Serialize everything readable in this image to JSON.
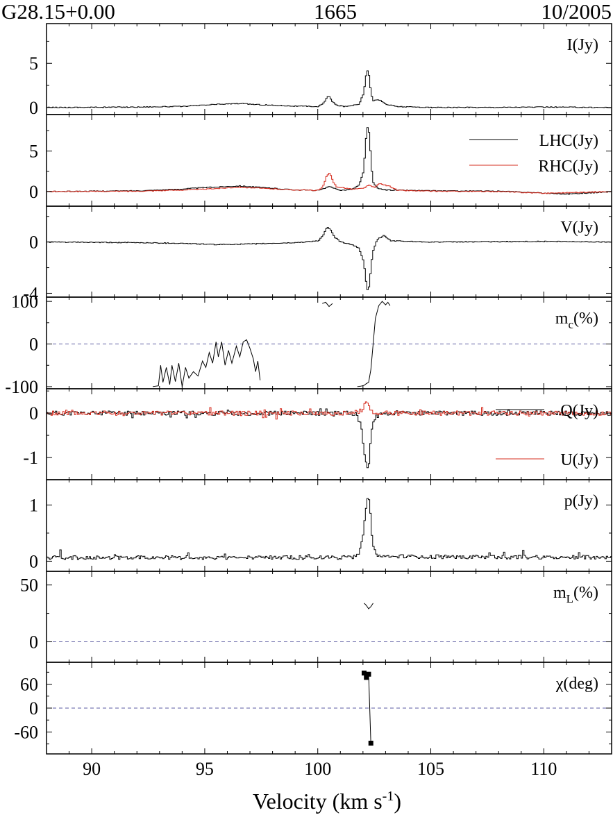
{
  "header": {
    "source": "G28.15+0.00",
    "frequency": "1665",
    "date": "10/2005"
  },
  "chart_data": {
    "type": "line",
    "xlabel": "Velocity (km s",
    "xlabel_sup": "-1",
    "xlabel_end": ")",
    "xlim": [
      88,
      113
    ],
    "xticks": [
      90,
      95,
      100,
      105,
      110
    ],
    "panels": [
      {
        "key": "I",
        "label": "I(Jy)",
        "ylim": [
          -0.8,
          9.5
        ],
        "yticks": [
          0,
          5
        ],
        "zero_line": false,
        "series": [
          {
            "name": "I(Jy)",
            "color": "#000000",
            "style": "step",
            "points": [
              [
                88.0,
                0
              ],
              [
                92.0,
                0.05
              ],
              [
                94.0,
                0.12
              ],
              [
                95.5,
                0.35
              ],
              [
                96.5,
                0.45
              ],
              [
                97.5,
                0.3
              ],
              [
                99.0,
                0.15
              ],
              [
                100.0,
                0.1
              ],
              [
                100.25,
                0.55
              ],
              [
                100.45,
                1.4
              ],
              [
                100.6,
                0.7
              ],
              [
                100.8,
                0.25
              ],
              [
                101.2,
                0.1
              ],
              [
                101.8,
                0.4
              ],
              [
                102.0,
                1.6
              ],
              [
                102.1,
                3.6
              ],
              [
                102.2,
                4.4
              ],
              [
                102.3,
                2.2
              ],
              [
                102.4,
                0.8
              ],
              [
                102.7,
                0.85
              ],
              [
                103.0,
                0.35
              ],
              [
                103.5,
                0.1
              ],
              [
                105.0,
                0
              ],
              [
                108.0,
                0.02
              ],
              [
                110.0,
                0.05
              ],
              [
                113.0,
                0
              ]
            ]
          }
        ]
      },
      {
        "key": "LR",
        "label": "",
        "ylim": [
          -1.8,
          9.5
        ],
        "yticks": [
          0,
          5
        ],
        "zero_line": false,
        "series": [
          {
            "name": "LHC(Jy)",
            "color": "#000000",
            "style": "step",
            "points": [
              [
                88.0,
                0
              ],
              [
                92.0,
                0.1
              ],
              [
                93.5,
                0.25
              ],
              [
                95.0,
                0.5
              ],
              [
                96.5,
                0.7
              ],
              [
                97.5,
                0.5
              ],
              [
                99.0,
                0.2
              ],
              [
                100.0,
                0.15
              ],
              [
                100.5,
                0.6
              ],
              [
                101.0,
                0.15
              ],
              [
                101.5,
                0.3
              ],
              [
                101.8,
                0.8
              ],
              [
                102.0,
                2.5
              ],
              [
                102.1,
                6.5
              ],
              [
                102.2,
                8.5
              ],
              [
                102.3,
                5
              ],
              [
                102.4,
                1.2
              ],
              [
                102.6,
                0.4
              ],
              [
                103.0,
                0.2
              ],
              [
                105.0,
                0.1
              ],
              [
                108.0,
                0.05
              ],
              [
                111.0,
                -0.3
              ],
              [
                113.0,
                0
              ]
            ]
          },
          {
            "name": "RHC(Jy)",
            "color": "#d62c1f",
            "style": "step",
            "points": [
              [
                88.0,
                0
              ],
              [
                92.0,
                0.05
              ],
              [
                94.0,
                0.2
              ],
              [
                95.0,
                0.3
              ],
              [
                96.5,
                0.55
              ],
              [
                97.5,
                0.4
              ],
              [
                99.0,
                0.2
              ],
              [
                100.0,
                0.15
              ],
              [
                100.2,
                0.6
              ],
              [
                100.35,
                1.8
              ],
              [
                100.5,
                2.3
              ],
              [
                100.65,
                1.2
              ],
              [
                100.8,
                0.6
              ],
              [
                101.5,
                0.3
              ],
              [
                102.0,
                0.4
              ],
              [
                102.2,
                0.8
              ],
              [
                102.5,
                0.5
              ],
              [
                102.7,
                1.0
              ],
              [
                103.2,
                0.6
              ],
              [
                103.5,
                0.15
              ],
              [
                105.0,
                0.05
              ],
              [
                108.0,
                0
              ],
              [
                110.0,
                -0.2
              ],
              [
                113.0,
                0
              ]
            ]
          }
        ]
      },
      {
        "key": "V",
        "label": "V(Jy)",
        "ylim": [
          -4.3,
          2.8
        ],
        "yticks": [
          0,
          -4
        ],
        "zero_line": false,
        "series": [
          {
            "name": "V(Jy)",
            "color": "#000000",
            "style": "step",
            "points": [
              [
                88.0,
                0
              ],
              [
                92.0,
                -0.05
              ],
              [
                94.0,
                -0.1
              ],
              [
                95.5,
                -0.2
              ],
              [
                97.0,
                -0.15
              ],
              [
                99.0,
                -0.05
              ],
              [
                100.0,
                0.1
              ],
              [
                100.2,
                0.5
              ],
              [
                100.4,
                1.2
              ],
              [
                100.55,
                0.9
              ],
              [
                100.7,
                0.4
              ],
              [
                101.0,
                0
              ],
              [
                101.5,
                -0.2
              ],
              [
                101.8,
                -0.5
              ],
              [
                102.0,
                -1.5
              ],
              [
                102.1,
                -3.0
              ],
              [
                102.2,
                -4.0
              ],
              [
                102.3,
                -2.5
              ],
              [
                102.4,
                -0.8
              ],
              [
                102.6,
                0.2
              ],
              [
                102.9,
                0.5
              ],
              [
                103.2,
                0.1
              ],
              [
                105.0,
                0
              ],
              [
                110.0,
                0.05
              ],
              [
                113.0,
                0
              ]
            ]
          }
        ]
      },
      {
        "key": "mc",
        "label": "m",
        "label_sub": "c",
        "label_end": "(%)",
        "ylim": [
          -105,
          110
        ],
        "yticks": [
          100,
          0,
          -100
        ],
        "zero_line": true,
        "series": [
          {
            "name": "mc-a",
            "color": "#000000",
            "style": "line",
            "points": [
              [
                92.7,
                -100
              ],
              [
                92.95,
                -98
              ],
              [
                93.05,
                -50
              ],
              [
                93.15,
                -90
              ],
              [
                93.3,
                -55
              ],
              [
                93.45,
                -95
              ],
              [
                93.55,
                -50
              ],
              [
                93.7,
                -88
              ],
              [
                93.85,
                -45
              ],
              [
                94.0,
                -100
              ],
              [
                94.15,
                -55
              ],
              [
                94.3,
                -80
              ],
              [
                94.5,
                -65
              ],
              [
                94.7,
                -75
              ],
              [
                94.9,
                -40
              ],
              [
                95.05,
                -55
              ],
              [
                95.2,
                -20
              ],
              [
                95.35,
                -45
              ],
              [
                95.5,
                5
              ],
              [
                95.6,
                -30
              ],
              [
                95.75,
                5
              ],
              [
                95.9,
                -50
              ],
              [
                96.05,
                -15
              ],
              [
                96.2,
                -45
              ],
              [
                96.4,
                -5
              ],
              [
                96.55,
                -30
              ],
              [
                96.7,
                5
              ],
              [
                96.85,
                10
              ],
              [
                97.0,
                -10
              ],
              [
                97.15,
                -35
              ],
              [
                97.25,
                -65
              ],
              [
                97.35,
                -40
              ],
              [
                97.45,
                -85
              ]
            ]
          },
          {
            "name": "mc-b",
            "color": "#000000",
            "style": "line",
            "points": [
              [
                100.2,
                95
              ],
              [
                100.35,
                98
              ],
              [
                100.5,
                88
              ],
              [
                100.65,
                95
              ]
            ]
          },
          {
            "name": "mc-c",
            "color": "#000000",
            "style": "line",
            "points": [
              [
                101.75,
                -100
              ],
              [
                101.9,
                -99
              ],
              [
                102.05,
                -97
              ],
              [
                102.15,
                -93
              ],
              [
                102.25,
                -90
              ],
              [
                102.35,
                -60
              ],
              [
                102.45,
                0
              ],
              [
                102.55,
                60
              ],
              [
                102.7,
                90
              ],
              [
                102.85,
                100
              ],
              [
                103.0,
                92
              ],
              [
                103.1,
                98
              ],
              [
                103.2,
                90
              ]
            ]
          }
        ]
      },
      {
        "key": "QU",
        "label": "",
        "ylim": [
          -1.5,
          0.55
        ],
        "yticks": [
          0,
          -1
        ],
        "zero_line": false,
        "series": [
          {
            "name": "Q(Jy)",
            "color": "#000000",
            "style": "noise",
            "amp": 0.05,
            "seed": 11,
            "points": [
              [
                88.0,
                0
              ],
              [
                101.5,
                0
              ],
              [
                101.7,
                -0.05
              ],
              [
                101.9,
                -0.3
              ],
              [
                102.0,
                -0.8
              ],
              [
                102.1,
                -1.1
              ],
              [
                102.2,
                -1.3
              ],
              [
                102.3,
                -0.7
              ],
              [
                102.4,
                -0.2
              ],
              [
                102.6,
                0
              ],
              [
                113.0,
                0
              ]
            ]
          },
          {
            "name": "U(Jy)",
            "color": "#d62c1f",
            "style": "noise",
            "amp": 0.05,
            "seed": 5,
            "points": [
              [
                88.0,
                0
              ],
              [
                101.5,
                0
              ],
              [
                101.9,
                0.05
              ],
              [
                102.1,
                0.25
              ],
              [
                102.3,
                0.1
              ],
              [
                102.5,
                0
              ],
              [
                113.0,
                0
              ]
            ]
          }
        ]
      },
      {
        "key": "p",
        "label": "p(Jy)",
        "ylim": [
          -0.18,
          1.45
        ],
        "yticks": [
          1,
          0
        ],
        "zero_line": false,
        "series": [
          {
            "name": "p(Jy)",
            "color": "#000000",
            "style": "noise",
            "amp": 0.07,
            "seed": 23,
            "positive": true,
            "points": [
              [
                88.0,
                0.03
              ],
              [
                101.5,
                0.03
              ],
              [
                101.8,
                0.1
              ],
              [
                102.0,
                0.45
              ],
              [
                102.1,
                0.9
              ],
              [
                102.2,
                1.2
              ],
              [
                102.3,
                0.8
              ],
              [
                102.4,
                0.25
              ],
              [
                102.6,
                0.05
              ],
              [
                113.0,
                0.03
              ]
            ]
          }
        ]
      },
      {
        "key": "mL",
        "label": "m",
        "label_sub": "L",
        "label_end": "(%)",
        "ylim": [
          -18,
          62
        ],
        "yticks": [
          50,
          0
        ],
        "zero_line": true,
        "series": [
          {
            "name": "mL",
            "color": "#000000",
            "style": "line",
            "points": [
              [
                102.05,
                34
              ],
              [
                102.15,
                32
              ],
              [
                102.25,
                29
              ],
              [
                102.35,
                31
              ],
              [
                102.45,
                34
              ]
            ]
          }
        ]
      },
      {
        "key": "chi",
        "label": "χ(deg)",
        "ylim": [
          -115,
          115
        ],
        "yticks": [
          60,
          0,
          -60
        ],
        "zero_line": true,
        "series": [
          {
            "name": "chi",
            "color": "#000000",
            "style": "line",
            "markers": true,
            "points": [
              [
                102.05,
                88
              ],
              [
                102.15,
                77
              ],
              [
                102.25,
                85
              ],
              [
                102.35,
                -88
              ]
            ]
          }
        ]
      }
    ],
    "legend": [
      {
        "panel": 1,
        "label": "LHC(Jy)",
        "color": "#000000"
      },
      {
        "panel": 1,
        "label": "RHC(Jy)",
        "color": "#d62c1f"
      },
      {
        "panel": 4,
        "label": "Q(Jy)",
        "color": "#000000"
      },
      {
        "panel": 4,
        "label": "U(Jy)",
        "color": "#d62c1f"
      }
    ]
  }
}
